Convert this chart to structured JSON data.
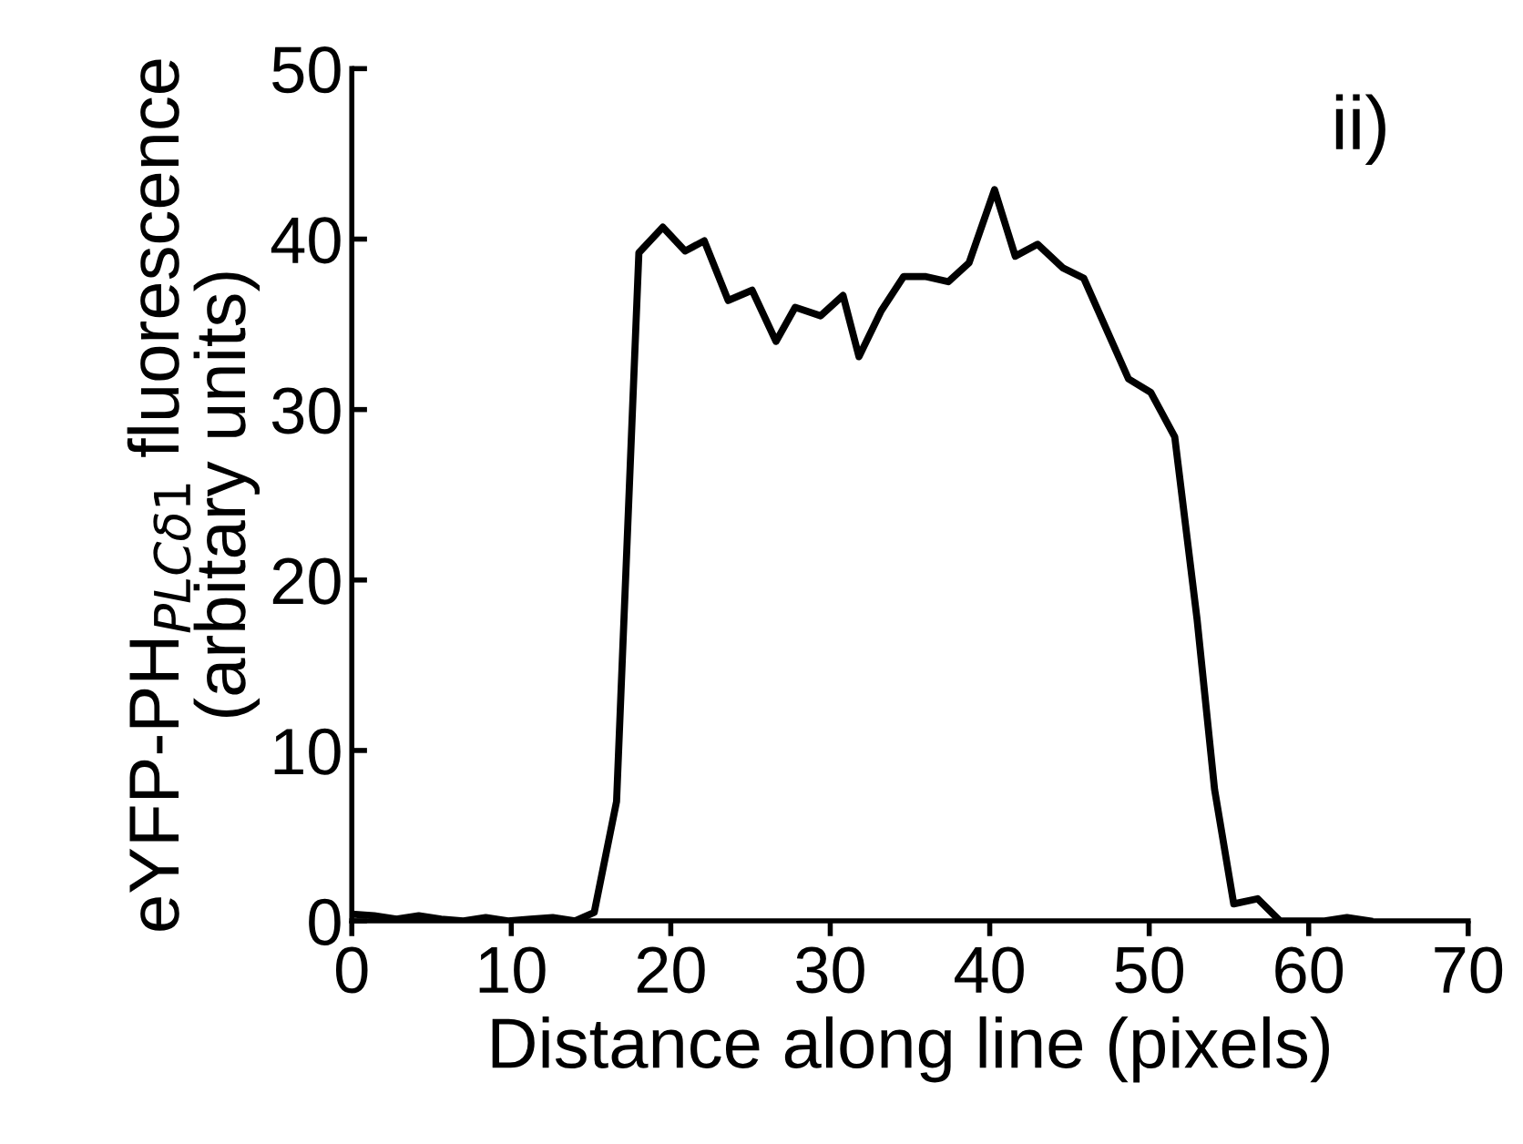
{
  "chart_data": {
    "type": "line",
    "xlabel": "Distance along line (pixels)",
    "ylabel": "eYFP-PH$_{PLCδ1}$ fluorescence\n(arbitary units)",
    "annotations": [
      "ii)"
    ],
    "series": [
      {
        "color": "#000000",
        "x": [
          0,
          1.4,
          2.8,
          4.2,
          5.6,
          7,
          8.4,
          9.8,
          11.2,
          12.6,
          14,
          15.2,
          16.6,
          18.0,
          19.5,
          20.9,
          22.1,
          23.6,
          25.1,
          26.6,
          27.8,
          29.4,
          30.8,
          31.8,
          33.2,
          34.6,
          36.0,
          37.4,
          38.7,
          40.3,
          41.6,
          43.0,
          44.6,
          45.9,
          48.7,
          50.1,
          51.6,
          53.0,
          54.1,
          55.3,
          56.8,
          58.2,
          59.6,
          61,
          62.4,
          63.8
        ],
        "values": [
          0.4,
          0.3,
          0.1,
          0.3,
          0.1,
          0,
          0.2,
          0,
          0.1,
          0.2,
          0,
          0.5,
          7.0,
          39.2,
          40.7,
          39.3,
          39.9,
          36.4,
          37.0,
          34.0,
          36.0,
          35.5,
          36.7,
          33.1,
          35.8,
          37.8,
          37.8,
          37.5,
          38.6,
          42.9,
          39.0,
          39.7,
          38.3,
          37.7,
          31.8,
          31.0,
          28.4,
          17.7,
          7.7,
          1.0,
          1.3,
          0,
          0,
          0,
          0.2,
          0
        ]
      }
    ],
    "xlim": [
      0,
      70
    ],
    "xticks": [
      0,
      10,
      20,
      30,
      40,
      50,
      60,
      70
    ],
    "ylim": [
      0,
      50
    ],
    "yticks": [
      0,
      10,
      20,
      30,
      40,
      50
    ],
    "grid": false,
    "legend": false,
    "marker": "none",
    "line_style": "solid"
  }
}
